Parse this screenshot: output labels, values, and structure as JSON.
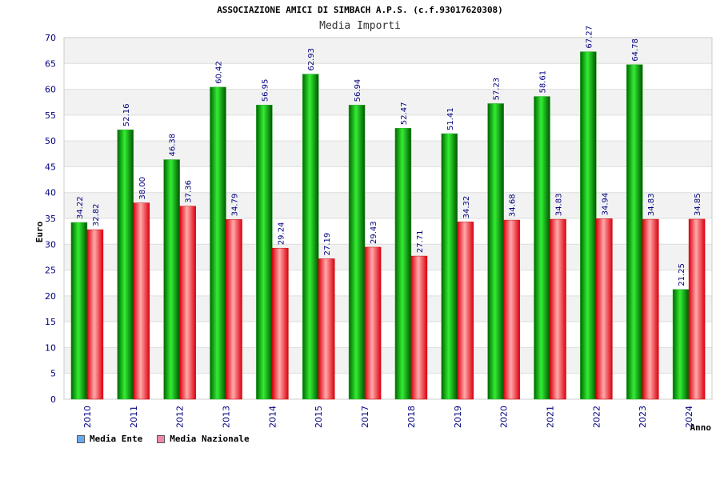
{
  "title": "ASSOCIAZIONE AMICI DI SIMBACH A.P.S. (c.f.93017620308)",
  "subtitle": "Media Importi",
  "colors": {
    "series1": "#22cc22",
    "series1_dark": "#007700",
    "series2": "#ee3344",
    "series2_light": "#ffaaaa",
    "legend1": "#66aaee",
    "legend2": "#ee88aa",
    "axis_text": "#000080"
  },
  "chart_data": {
    "type": "bar",
    "ylabel": "Euro",
    "xlabel": "Anno",
    "ylim": [
      0,
      70
    ],
    "ytick_step": 5,
    "grid": true,
    "legend_position": "bottom-left",
    "categories": [
      "2010",
      "2011",
      "2012",
      "2013",
      "2014",
      "2015",
      "2017",
      "2018",
      "2019",
      "2020",
      "2021",
      "2022",
      "2023",
      "2024"
    ],
    "series": [
      {
        "name": "Media Ente",
        "values": [
          34.22,
          52.16,
          46.38,
          60.42,
          56.95,
          62.93,
          56.94,
          52.47,
          51.41,
          57.23,
          58.61,
          67.27,
          64.78,
          21.25
        ],
        "labels": [
          "34.22",
          "52.16",
          "46.38",
          "60.42",
          "56.95",
          "62.93",
          "56.94",
          "52.47",
          "51.41",
          "57.23",
          "58.61",
          "67.27",
          "64.78",
          "21.25"
        ]
      },
      {
        "name": "Media Nazionale",
        "values": [
          32.82,
          38.0,
          37.36,
          34.79,
          29.24,
          27.19,
          29.43,
          27.71,
          34.32,
          34.68,
          34.83,
          34.94,
          34.83,
          34.85
        ],
        "labels": [
          "32.82",
          "38.00",
          "37.36",
          "34.79",
          "29.24",
          "27.19",
          "29.43",
          "27.71",
          "34.32",
          "34.68",
          "34.83",
          "34.94",
          "34.83",
          "34.85"
        ]
      }
    ]
  }
}
